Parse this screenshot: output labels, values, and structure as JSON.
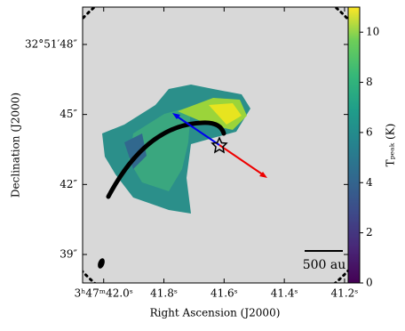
{
  "chart_data": {
    "type": "image",
    "xlabel": "Right Ascension (J2000)",
    "ylabel": "Declination (J2000)",
    "xlim": [
      42.07,
      41.188
    ],
    "xticks": [
      {
        "value": 42.0,
        "label": "3ʰ47ᵐ42.0ˢ"
      },
      {
        "value": 41.8,
        "label": "41.8ˢ"
      },
      {
        "value": 41.6,
        "label": "41.6ˢ"
      },
      {
        "value": 41.4,
        "label": "41.4ˢ"
      },
      {
        "value": 41.2,
        "label": "41.2ˢ"
      }
    ],
    "ylim": [
      37.78,
      49.6
    ],
    "yticks": [
      {
        "value": 39,
        "label": "39″"
      },
      {
        "value": 42,
        "label": "42″"
      },
      {
        "value": 45,
        "label": "45″"
      },
      {
        "value": 48,
        "label": "32°51′48″"
      }
    ],
    "colorbar": {
      "label": "Tₚₑₐₖ (K)",
      "clim": [
        0,
        11
      ],
      "ticks": [
        0,
        2,
        4,
        6,
        8,
        10
      ]
    },
    "scalebar_label": "500 au"
  }
}
